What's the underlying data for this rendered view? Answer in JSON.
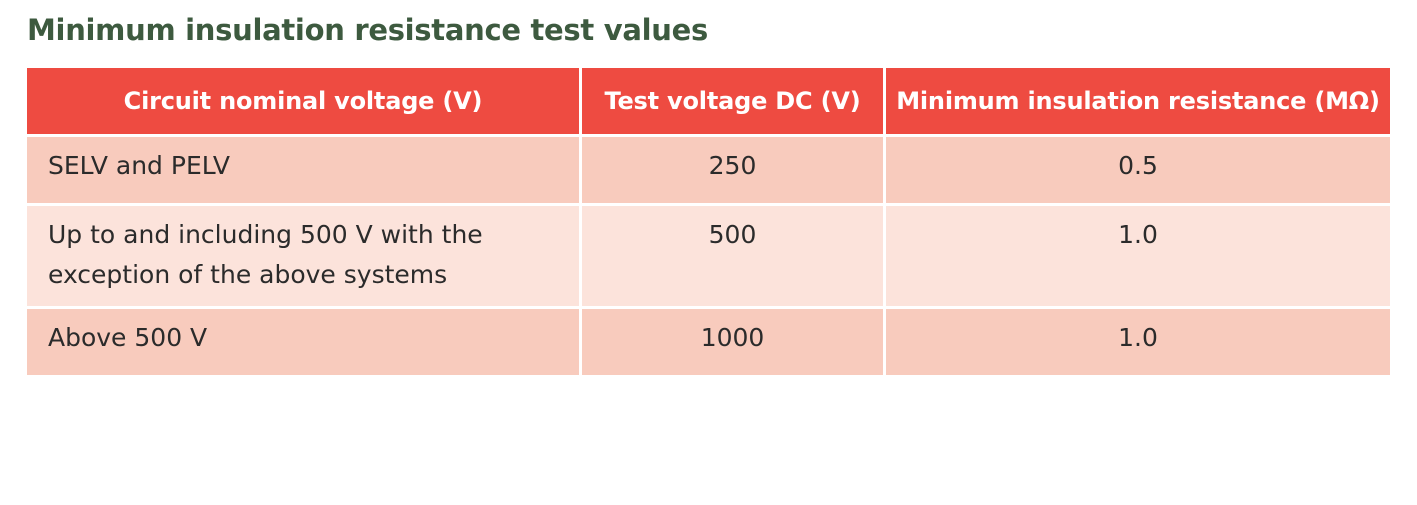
{
  "title": "Minimum insulation resistance test values",
  "table": {
    "headers": [
      "Circuit nominal voltage (V)",
      "Test voltage DC (V)",
      "Minimum insulation resistance (MΩ)"
    ],
    "rows": [
      [
        "SELV and PELV",
        "250",
        "0.5"
      ],
      [
        "Up to and including 500 V with the exception of the above systems",
        "500",
        "1.0"
      ],
      [
        "Above 500 V",
        "1000",
        "1.0"
      ]
    ]
  }
}
